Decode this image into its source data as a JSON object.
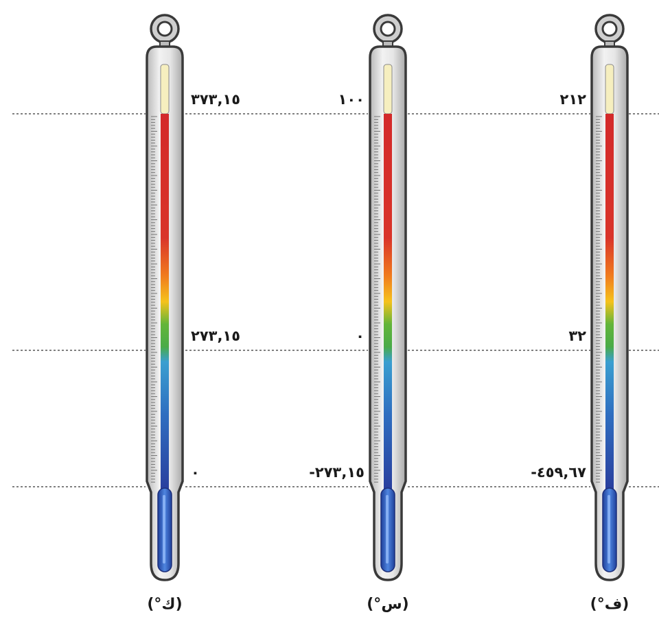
{
  "colors": {
    "guide_line": "#555555",
    "tube_outline": "#3a3a3a",
    "tube_glass": "#d8d8d8",
    "empty_column": "#f6efbf",
    "bulb": "#2f63c6"
  },
  "reference_lines": [
    {
      "name": "boiling-point-line"
    },
    {
      "name": "freezing-point-line"
    },
    {
      "name": "absolute-zero-line"
    }
  ],
  "thermometers": [
    {
      "name": "kelvin",
      "unit_label": "(°ك)",
      "values": [
        "٣٧٣,١٥",
        "٢٧٣,١٥",
        "٠"
      ]
    },
    {
      "name": "celsius",
      "unit_label": "(°س)",
      "values": [
        "١٠٠",
        "٠",
        "-٢٧٣,١٥"
      ]
    },
    {
      "name": "fahrenheit",
      "unit_label": "(°ف)",
      "values": [
        "٢١٢",
        "٣٢",
        "-٤٥٩,٦٧"
      ]
    }
  ]
}
